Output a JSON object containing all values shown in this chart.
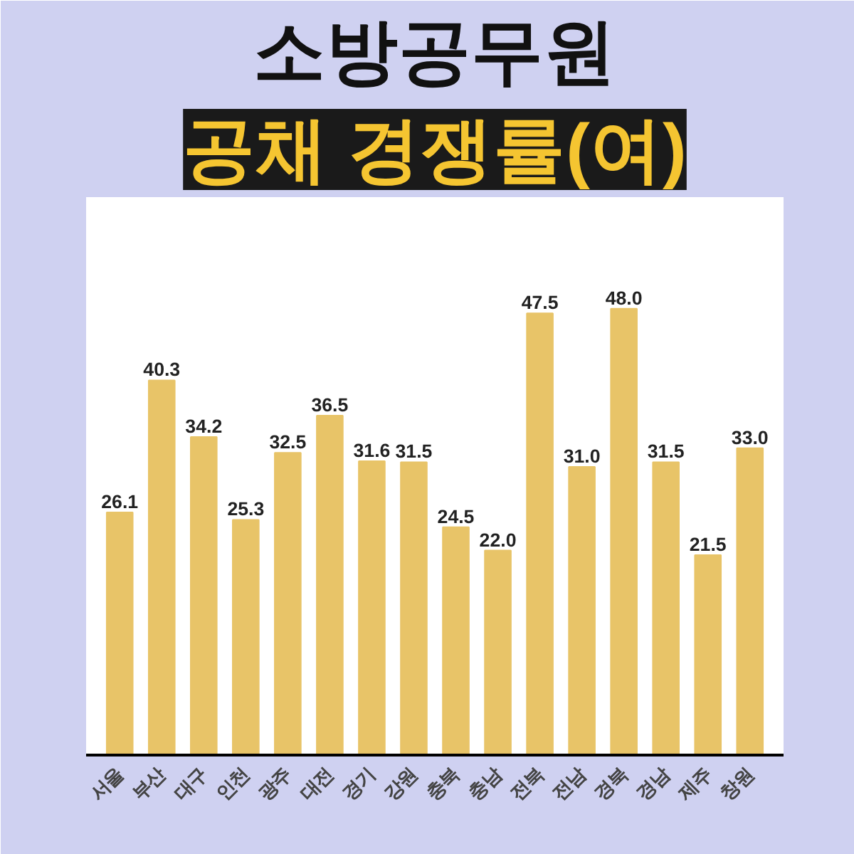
{
  "chart_data": {
    "type": "bar",
    "title": "소방공무원",
    "subtitle": "공채 경쟁률(여)",
    "categories": [
      "서울",
      "부산",
      "대구",
      "인천",
      "광주",
      "대전",
      "경기",
      "강원",
      "충북",
      "충남",
      "전북",
      "전남",
      "경북",
      "경남",
      "제주",
      "창원"
    ],
    "values": [
      26.1,
      40.3,
      34.2,
      25.3,
      32.5,
      36.5,
      31.6,
      31.5,
      24.5,
      22.0,
      47.5,
      31.0,
      48.0,
      31.5,
      21.5,
      33.0
    ],
    "value_labels": [
      "26.1",
      "40.3",
      "34.2",
      "25.3",
      "32.5",
      "36.5",
      "31.6",
      "31.5",
      "24.5",
      "22.0",
      "47.5",
      "31.0",
      "48.0",
      "31.5",
      "21.5",
      "33.0"
    ],
    "color": "#e8c468",
    "grid": false
  }
}
